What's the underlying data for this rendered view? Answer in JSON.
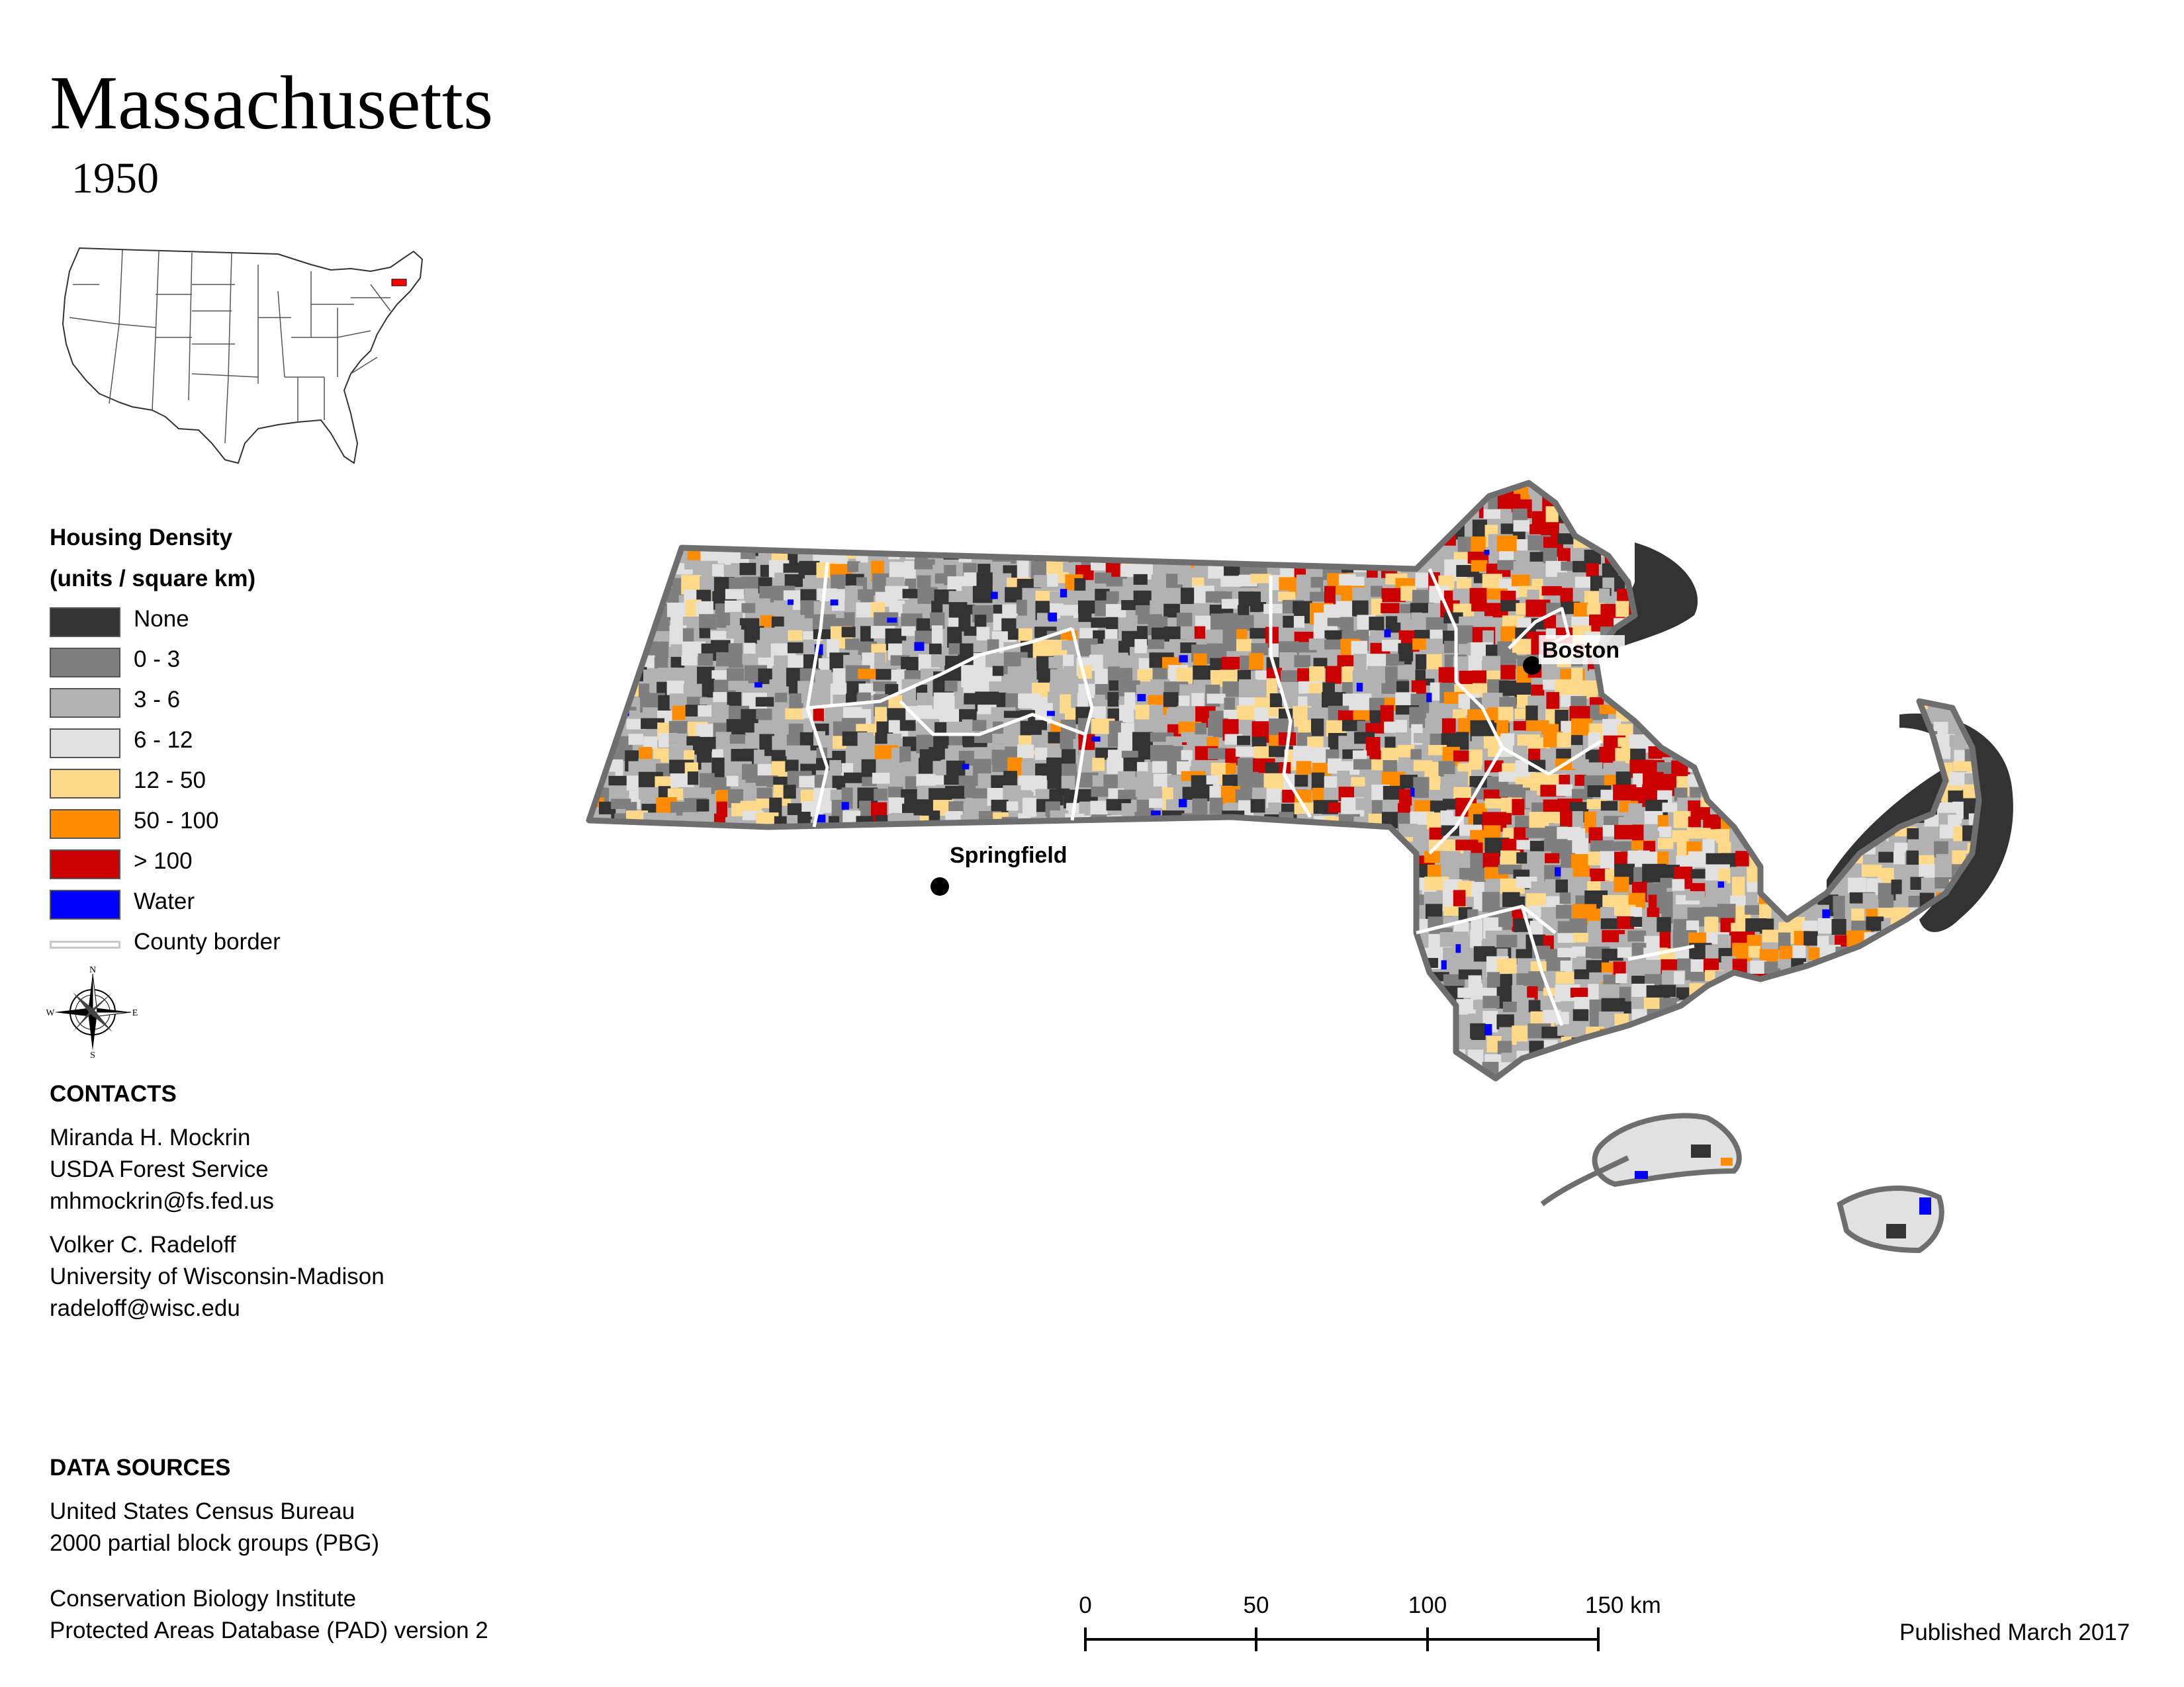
{
  "header": {
    "title": "Massachusetts",
    "subtitle": "1950"
  },
  "legend": {
    "heading_1": "Housing Density",
    "heading_2": "(units / square km)",
    "items": [
      {
        "label": "None",
        "color": "#333333"
      },
      {
        "label": "0 - 3",
        "color": "#7f7f7f"
      },
      {
        "label": "3 - 6",
        "color": "#b2b2b2"
      },
      {
        "label": "6 - 12",
        "color": "#e1e1e1"
      },
      {
        "label": "12 - 50",
        "color": "#ffd98a"
      },
      {
        "label": "50 - 100",
        "color": "#ff8c00"
      },
      {
        "label": "> 100",
        "color": "#cc0000"
      },
      {
        "label": "Water",
        "color": "#0000ff"
      }
    ],
    "border_label": "County border"
  },
  "compass": {
    "n": "N",
    "s": "S",
    "e": "E",
    "w": "W"
  },
  "contacts": {
    "heading": "CONTACTS",
    "people": [
      {
        "name": "Miranda H. Mockrin",
        "org": "USDA Forest Service",
        "email": "mhmockrin@fs.fed.us"
      },
      {
        "name": "Volker C. Radeloff",
        "org": "University of Wisconsin-Madison",
        "email": "radeloff@wisc.edu"
      }
    ]
  },
  "sources": {
    "heading": "DATA SOURCES",
    "entries": [
      {
        "line1": "United States Census Bureau",
        "line2": "2000 partial block groups (PBG)"
      },
      {
        "line1": "Conservation Biology Institute",
        "line2": "Protected Areas Database (PAD) version 2"
      }
    ]
  },
  "map": {
    "cities": [
      {
        "name": "Boston"
      },
      {
        "name": "Springfield"
      }
    ]
  },
  "scalebar": {
    "ticks": [
      "0",
      "50",
      "100",
      "150 km"
    ]
  },
  "footer": {
    "published": "Published March 2017"
  }
}
